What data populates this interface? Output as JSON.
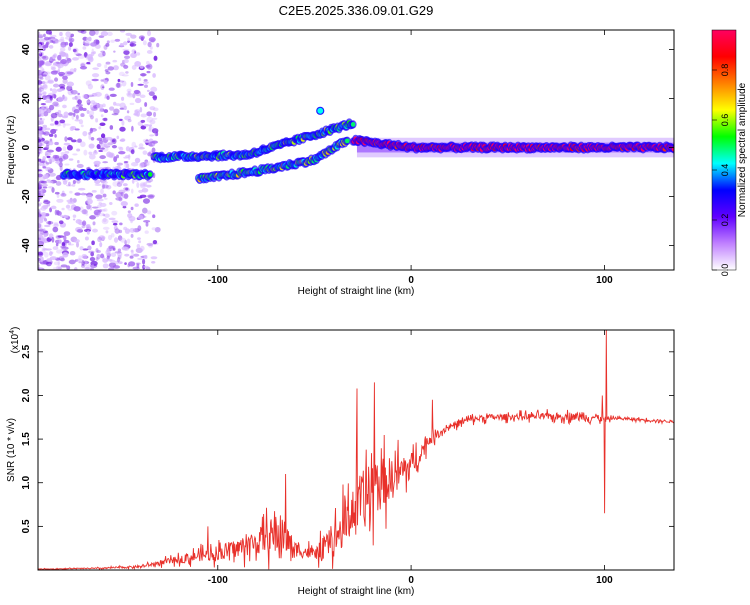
{
  "title": "C2E5.2025.336.09.01.G29",
  "chart_data": [
    {
      "type": "heatmap",
      "panel": "top",
      "xlabel": "Height of straight line (km)",
      "ylabel": "Frequency (Hz)",
      "xlim": [
        -193,
        136
      ],
      "ylim": [
        -50,
        48
      ],
      "xticks": [
        -100,
        0,
        100
      ],
      "xtick_labels": [
        "-100",
        "0",
        "100"
      ],
      "yticks": [
        -40,
        -20,
        0,
        20,
        40
      ],
      "ytick_labels": [
        "-40",
        "-20",
        "0",
        "20",
        "40"
      ],
      "colorbar": {
        "label": "Normalized spectral amplitude",
        "range": [
          0,
          0.96
        ],
        "ticks": [
          0.0,
          0.2,
          0.4,
          0.6,
          0.8
        ],
        "tick_labels": [
          "0.0",
          "0.2",
          "0.4",
          "0.6",
          "0.8"
        ],
        "colormap": [
          "#ffffff",
          "#c080ff",
          "#6000ff",
          "#0000ff",
          "#00ffff",
          "#00ff00",
          "#ffff00",
          "#ff8000",
          "#ff0000",
          "#ff0060"
        ]
      },
      "signal_tracks": [
        {
          "name": "low-height band",
          "x": [
            -180,
            -135
          ],
          "freq": [
            -11,
            -11
          ],
          "amplitude": 0.35
        },
        {
          "name": "rising branch A",
          "x": [
            -133,
            -85,
            -55,
            -30
          ],
          "freq": [
            -4,
            -3,
            4,
            10
          ],
          "amplitude": 0.4
        },
        {
          "name": "rising branch B",
          "x": [
            -110,
            -75,
            -50,
            -33
          ],
          "freq": [
            -13,
            -9,
            -5,
            3
          ],
          "amplitude": 0.45
        },
        {
          "name": "stable carrier",
          "x": [
            -30,
            0,
            25,
            136
          ],
          "freq": [
            3,
            0,
            0,
            0
          ],
          "amplitude": 0.9
        }
      ]
    },
    {
      "type": "line",
      "panel": "bottom",
      "xlabel": "Height of straight line (km)",
      "ylabel": "SNR (10 * v/v)",
      "y_scale_label": "(x10",
      "y_scale_exponent": "4",
      "y_scale_close": ")",
      "xlim": [
        -193,
        136
      ],
      "ylim": [
        0,
        2.75
      ],
      "xticks": [
        -100,
        0,
        100
      ],
      "xtick_labels": [
        "-100",
        "0",
        "100"
      ],
      "yticks": [
        0.5,
        1.0,
        1.5,
        2.0,
        2.5
      ],
      "ytick_labels": [
        "0.5",
        "1.0",
        "1.5",
        "2.0",
        "2.5"
      ],
      "line_color": "#e8302a",
      "envelope": {
        "x": [
          -193,
          -160,
          -140,
          -120,
          -105,
          -100,
          -90,
          -80,
          -70,
          -65,
          -60,
          -50,
          -40,
          -35,
          -30,
          -20,
          -15,
          -10,
          -5,
          0,
          10,
          20,
          30,
          40,
          60,
          80,
          95,
          100,
          105,
          136
        ],
        "mean": [
          0.01,
          0.02,
          0.04,
          0.12,
          0.18,
          0.2,
          0.25,
          0.32,
          0.42,
          0.36,
          0.24,
          0.18,
          0.35,
          0.5,
          0.7,
          0.9,
          1.0,
          1.05,
          1.12,
          1.2,
          1.5,
          1.65,
          1.72,
          1.75,
          1.76,
          1.76,
          1.75,
          1.72,
          1.74,
          1.7
        ],
        "noise": [
          0.005,
          0.01,
          0.02,
          0.06,
          0.1,
          0.12,
          0.15,
          0.2,
          0.3,
          0.28,
          0.12,
          0.1,
          0.25,
          0.35,
          0.45,
          0.5,
          0.4,
          0.35,
          0.3,
          0.2,
          0.08,
          0.05,
          0.05,
          0.05,
          0.05,
          0.06,
          0.06,
          0.04,
          0.02,
          0.02
        ]
      },
      "spikes": [
        {
          "x": -105,
          "y": 0.5
        },
        {
          "x": -65,
          "y": 1.1
        },
        {
          "x": -28,
          "y": 2.08
        },
        {
          "x": -19,
          "y": 2.15
        },
        {
          "x": 11,
          "y": 1.95
        },
        {
          "x": 99,
          "y": 2.0
        },
        {
          "x": 100,
          "y": 0.65
        },
        {
          "x": 101,
          "y": 2.75
        }
      ]
    }
  ]
}
